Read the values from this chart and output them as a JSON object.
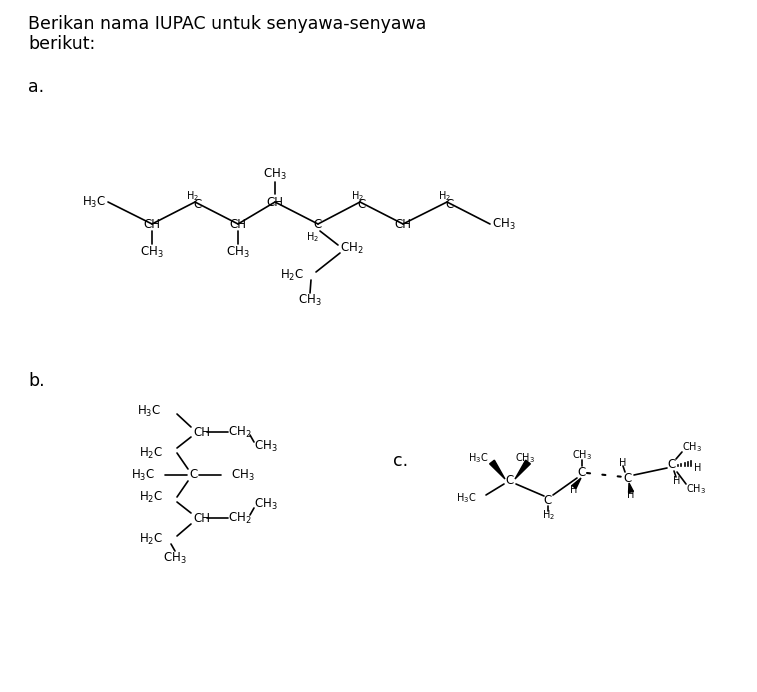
{
  "bg_color": "#ffffff",
  "text_color": "#000000",
  "fig_width": 7.57,
  "fig_height": 6.92,
  "title_line1": "Berikan nama IUPAC untuk senyawa-senyawa",
  "title_line2": "berikut:",
  "label_a": "a.",
  "label_b": "b.",
  "label_c": "c."
}
